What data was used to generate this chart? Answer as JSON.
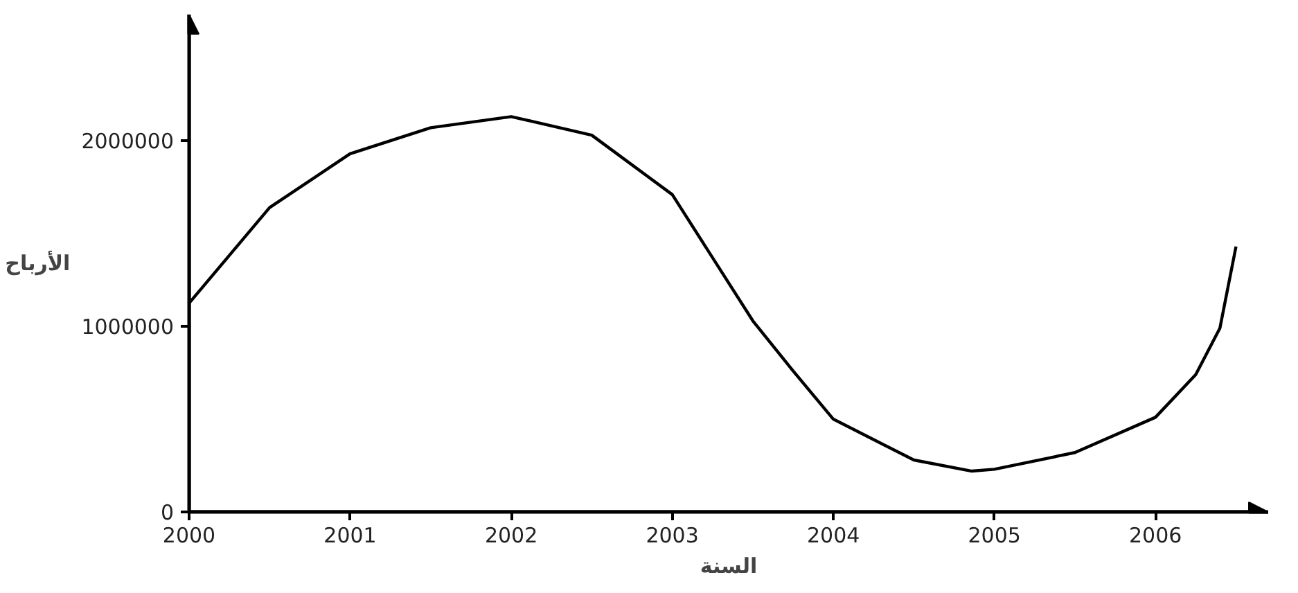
{
  "chart_data": {
    "type": "line",
    "xlabel": "السنة",
    "ylabel": "الأرباح",
    "x": [
      2000,
      2000.5,
      2001,
      2001.5,
      2002,
      2002.5,
      2003,
      2003.5,
      2003.75,
      2004,
      2004.5,
      2004.86,
      2005,
      2005.5,
      2006,
      2006.25,
      2006.4,
      2006.5
    ],
    "series": [
      {
        "color": "#000000",
        "values": [
          1125000,
          1640000,
          1930000,
          2070000,
          2130000,
          2030000,
          1710000,
          1030000,
          760000,
          500000,
          280000,
          220000,
          230000,
          320000,
          510000,
          740000,
          990000,
          1430000
        ]
      }
    ],
    "xlim": [
      2000,
      2006.7
    ],
    "ylim": [
      0,
      2680000
    ],
    "xticks": [
      2000,
      2001,
      2002,
      2003,
      2004,
      2005,
      2006
    ],
    "yticks": [
      0,
      1000000,
      2000000
    ],
    "grid": false,
    "marker": "none",
    "line_style": "solid"
  }
}
